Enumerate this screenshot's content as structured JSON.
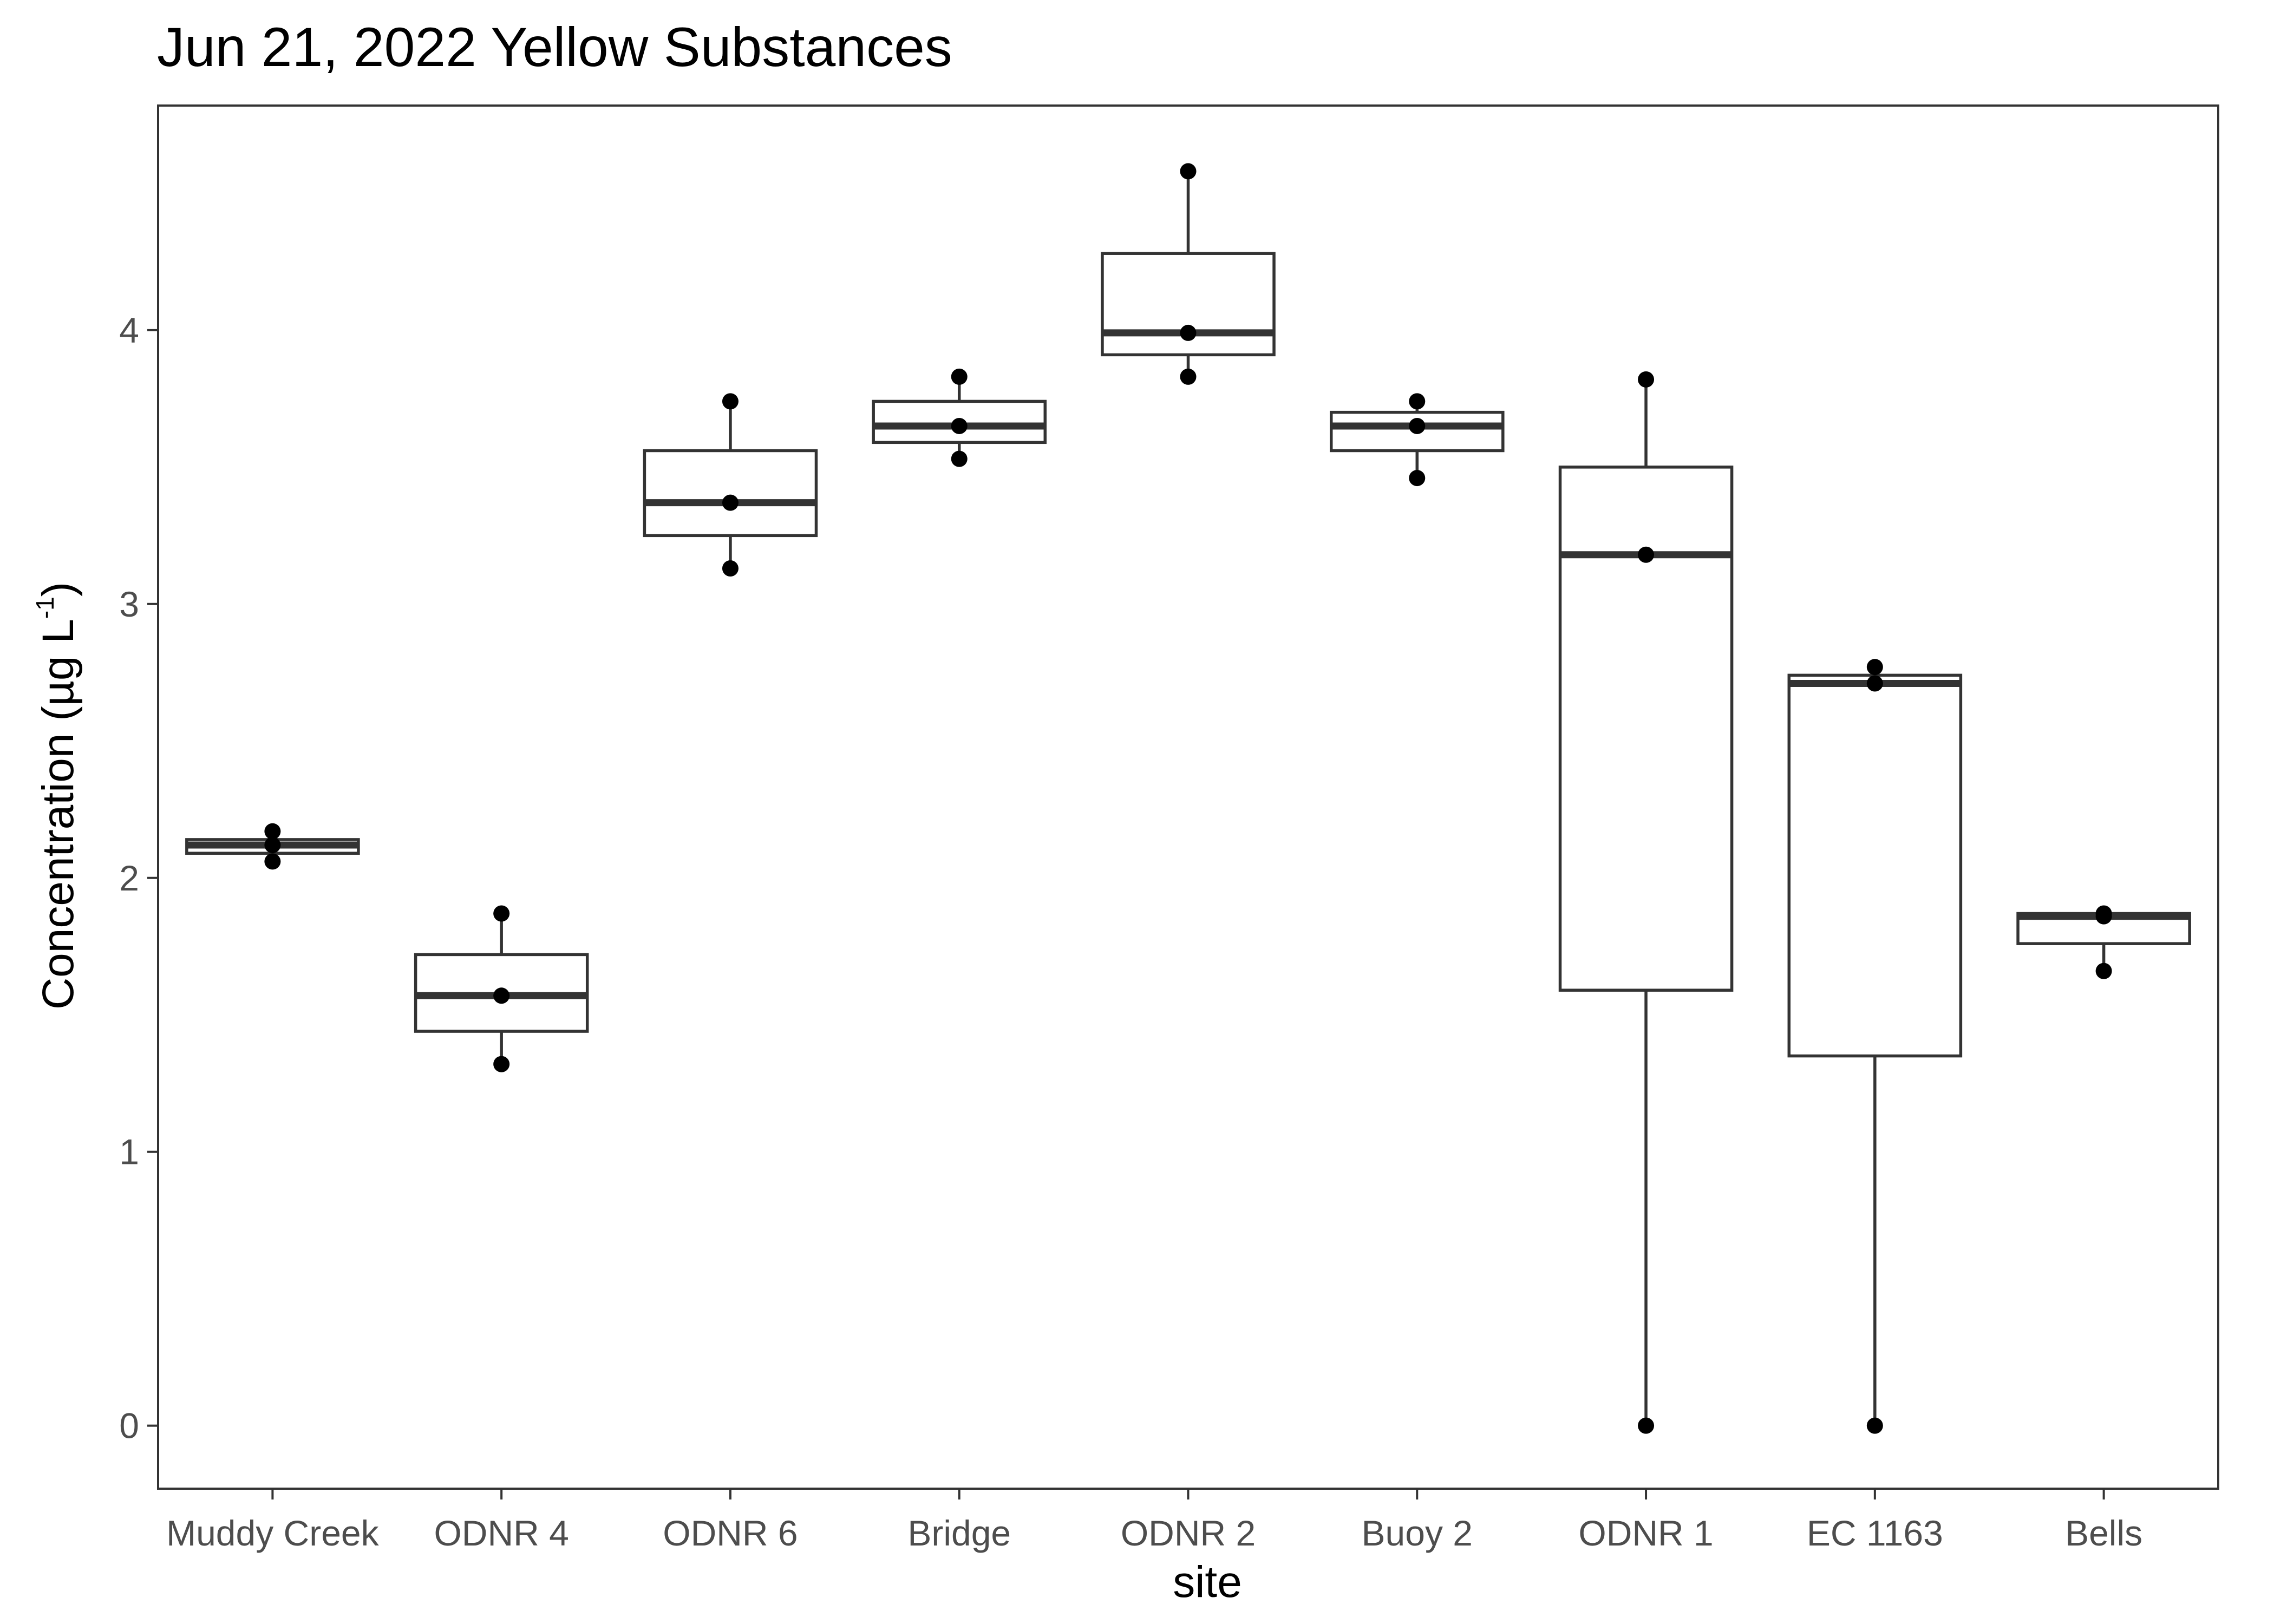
{
  "chart_data": {
    "type": "box",
    "title": "Jun 21, 2022 Yellow Substances",
    "xlabel": "site",
    "ylabel_main": "Concentration (µg L",
    "ylabel_sup": "-1",
    "ylabel_close": ")",
    "ylim": [
      -0.23,
      4.82
    ],
    "yticks": [
      0,
      1,
      2,
      3,
      4
    ],
    "grid": false,
    "categories": [
      "Muddy Creek",
      "ODNR 4",
      "ODNR 6",
      "Bridge",
      "ODNR 2",
      "Buoy 2",
      "ODNR 1",
      "EC 1163",
      "Bells"
    ],
    "boxes": [
      {
        "site": "Muddy Creek",
        "whisker_low": 2.06,
        "q1": 2.09,
        "median": 2.12,
        "q3": 2.14,
        "whisker_high": 2.17,
        "points": [
          2.06,
          2.12,
          2.17
        ]
      },
      {
        "site": "ODNR 4",
        "whisker_low": 1.32,
        "q1": 1.44,
        "median": 1.57,
        "q3": 1.72,
        "whisker_high": 1.87,
        "points": [
          1.32,
          1.57,
          1.87
        ]
      },
      {
        "site": "ODNR 6",
        "whisker_low": 3.13,
        "q1": 3.25,
        "median": 3.37,
        "q3": 3.56,
        "whisker_high": 3.74,
        "points": [
          3.13,
          3.37,
          3.74
        ]
      },
      {
        "site": "Bridge",
        "whisker_low": 3.53,
        "q1": 3.59,
        "median": 3.65,
        "q3": 3.74,
        "whisker_high": 3.83,
        "points": [
          3.53,
          3.65,
          3.83
        ]
      },
      {
        "site": "ODNR 2",
        "whisker_low": 3.83,
        "q1": 3.91,
        "median": 3.99,
        "q3": 4.28,
        "whisker_high": 4.58,
        "points": [
          3.83,
          3.99,
          4.58
        ]
      },
      {
        "site": "Buoy 2",
        "whisker_low": 3.46,
        "q1": 3.56,
        "median": 3.65,
        "q3": 3.7,
        "whisker_high": 3.74,
        "points": [
          3.46,
          3.65,
          3.74
        ]
      },
      {
        "site": "ODNR 1",
        "whisker_low": 0.0,
        "q1": 1.59,
        "median": 3.18,
        "q3": 3.5,
        "whisker_high": 3.82,
        "points": [
          0.0,
          3.18,
          3.82
        ]
      },
      {
        "site": "EC 1163",
        "whisker_low": 0.0,
        "q1": 1.35,
        "median": 2.71,
        "q3": 2.74,
        "whisker_high": 2.77,
        "points": [
          0.0,
          2.71,
          2.77
        ]
      },
      {
        "site": "Bells",
        "whisker_low": 1.66,
        "q1": 1.76,
        "median": 1.86,
        "q3": 1.87,
        "whisker_high": 1.87,
        "points": [
          1.66,
          1.86,
          1.87
        ]
      }
    ]
  }
}
